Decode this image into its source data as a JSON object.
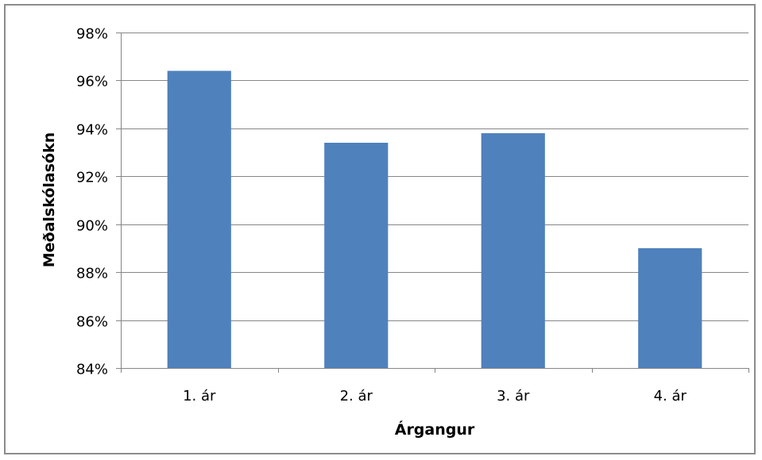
{
  "chart_data": {
    "type": "bar",
    "title": "",
    "xlabel": "Árgangur",
    "ylabel": "Meðalskólasókn",
    "categories": [
      "1. ár",
      "2. ár",
      "3. ár",
      "4. ár"
    ],
    "values": [
      96.4,
      93.4,
      93.8,
      89.0
    ],
    "ylim": [
      84,
      98
    ],
    "yticks": [
      84,
      86,
      88,
      90,
      92,
      94,
      96,
      98
    ],
    "ytick_labels": [
      "84%",
      "86%",
      "88%",
      "90%",
      "92%",
      "94%",
      "96%",
      "98%"
    ],
    "grid": true,
    "legend": "none",
    "bar_color": "#4f81bd",
    "grid_color": "#868686"
  }
}
